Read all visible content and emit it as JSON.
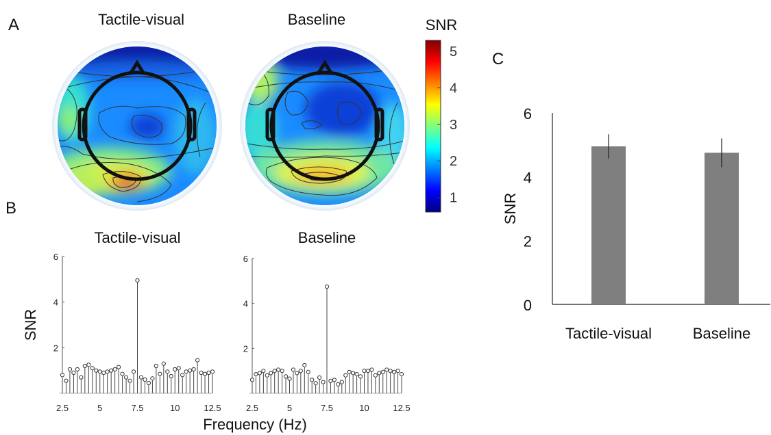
{
  "panels": {
    "a": "A",
    "b": "B",
    "c": "C"
  },
  "topomaps": [
    {
      "title": "Tactile-visual"
    },
    {
      "title": "Baseline"
    }
  ],
  "colorbar": {
    "label": "SNR",
    "ticks": [
      "1",
      "2",
      "3",
      "4",
      "5"
    ],
    "range": [
      0.6,
      5.3
    ],
    "colormap": [
      "#00007f",
      "#0000ff",
      "#007fff",
      "#00ffff",
      "#7fff7f",
      "#ffff00",
      "#ff7f00",
      "#ff0000",
      "#7f0000"
    ]
  },
  "chart_data": [
    {
      "type": "scatter",
      "style": "stem",
      "title": "Tactile-visual",
      "xlabel": "Frequency (Hz)",
      "ylabel": "SNR",
      "xlim": [
        2.5,
        12.5
      ],
      "ylim": [
        0,
        6
      ],
      "xticks": [
        "2.5",
        "5",
        "7.5",
        "10",
        "12.5"
      ],
      "yticks": [
        "2",
        "4",
        "6"
      ],
      "x": [
        2.5,
        2.75,
        3.0,
        3.25,
        3.5,
        3.75,
        4.0,
        4.25,
        4.5,
        4.75,
        5.0,
        5.25,
        5.5,
        5.75,
        6.0,
        6.25,
        6.5,
        6.75,
        7.0,
        7.25,
        7.5,
        7.75,
        8.0,
        8.25,
        8.5,
        8.75,
        9.0,
        9.25,
        9.5,
        9.75,
        10.0,
        10.25,
        10.5,
        10.75,
        11.0,
        11.25,
        11.5,
        11.75,
        12.0,
        12.25,
        12.5
      ],
      "y": [
        0.8,
        0.55,
        1.05,
        0.9,
        1.05,
        0.7,
        1.2,
        1.25,
        1.1,
        1.0,
        0.95,
        0.9,
        0.95,
        1.0,
        1.05,
        1.15,
        0.85,
        0.7,
        0.55,
        0.95,
        4.95,
        0.7,
        0.6,
        0.45,
        0.65,
        1.2,
        0.85,
        1.3,
        0.95,
        0.75,
        1.05,
        1.1,
        0.8,
        0.95,
        1.0,
        1.05,
        1.45,
        0.9,
        0.85,
        0.9,
        0.95
      ]
    },
    {
      "type": "scatter",
      "style": "stem",
      "title": "Baseline",
      "xlabel": "",
      "ylabel": "",
      "xlim": [
        2.5,
        12.5
      ],
      "ylim": [
        0,
        6
      ],
      "xticks": [
        "2.5",
        "5",
        "7.5",
        "10",
        "12.5"
      ],
      "yticks": [
        "2",
        "4",
        "6"
      ],
      "x": [
        2.5,
        2.75,
        3.0,
        3.25,
        3.5,
        3.75,
        4.0,
        4.25,
        4.5,
        4.75,
        5.0,
        5.25,
        5.5,
        5.75,
        6.0,
        6.25,
        6.5,
        6.75,
        7.0,
        7.25,
        7.5,
        7.75,
        8.0,
        8.25,
        8.5,
        8.75,
        9.0,
        9.25,
        9.5,
        9.75,
        10.0,
        10.25,
        10.5,
        10.75,
        11.0,
        11.25,
        11.5,
        11.75,
        12.0,
        12.25,
        12.5
      ],
      "y": [
        0.6,
        0.85,
        0.9,
        1.0,
        0.8,
        0.9,
        1.0,
        1.05,
        1.0,
        0.75,
        0.65,
        1.05,
        0.9,
        1.0,
        1.25,
        0.95,
        0.6,
        0.45,
        0.7,
        0.5,
        4.75,
        0.55,
        0.6,
        0.4,
        0.5,
        0.8,
        0.95,
        0.9,
        0.85,
        0.75,
        1.0,
        1.0,
        1.05,
        0.8,
        0.9,
        0.95,
        1.05,
        1.0,
        0.95,
        1.0,
        0.85
      ]
    },
    {
      "type": "bar",
      "title": "",
      "xlabel": "",
      "ylabel": "SNR",
      "categories": [
        "Tactile-visual",
        "Baseline"
      ],
      "values": [
        4.95,
        4.75
      ],
      "errors": [
        0.38,
        0.45
      ],
      "ylim": [
        0,
        6
      ],
      "yticks": [
        "0",
        "2",
        "4",
        "6"
      ],
      "bar_color": "#7f7f7f"
    }
  ]
}
